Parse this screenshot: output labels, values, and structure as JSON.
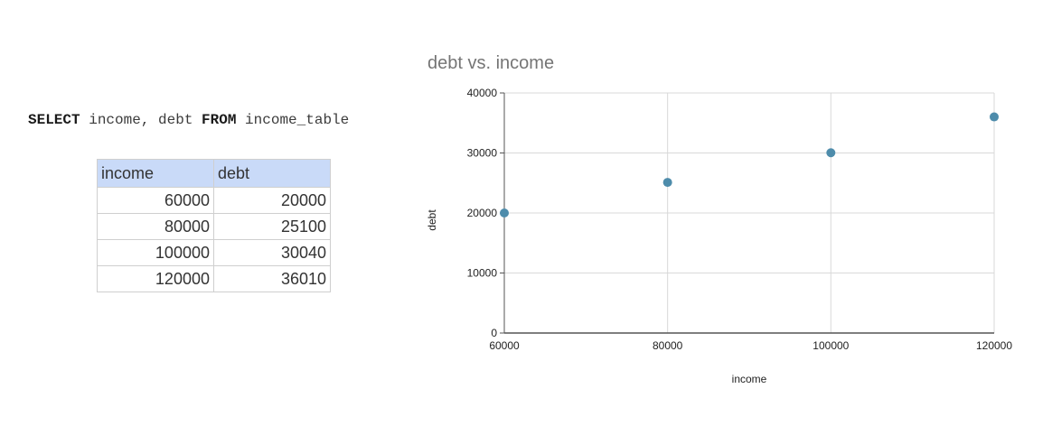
{
  "query": {
    "kw_select": "SELECT",
    "cols": " income, debt ",
    "kw_from": "FROM",
    "table": " income_table"
  },
  "table": {
    "headers": [
      "income",
      "debt"
    ],
    "rows": [
      [
        "60000",
        "20000"
      ],
      [
        "80000",
        "25100"
      ],
      [
        "100000",
        "30040"
      ],
      [
        "120000",
        "36010"
      ]
    ]
  },
  "chart_data": {
    "type": "scatter",
    "title": "debt vs. income",
    "xlabel": "income",
    "ylabel": "debt",
    "x": [
      60000,
      80000,
      100000,
      120000
    ],
    "y": [
      20000,
      25100,
      30040,
      36010
    ],
    "xlim": [
      60000,
      120000
    ],
    "ylim": [
      0,
      40000
    ],
    "xticks": [
      60000,
      80000,
      100000,
      120000
    ],
    "yticks": [
      0,
      10000,
      20000,
      30000,
      40000
    ],
    "grid": true,
    "point_color": "#4e8cab",
    "grid_color": "#d9d9d9",
    "axis_color": "#555555"
  }
}
